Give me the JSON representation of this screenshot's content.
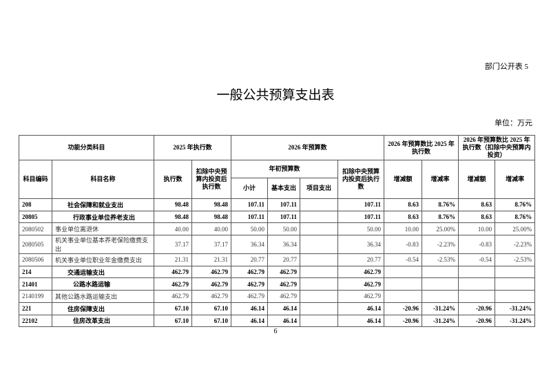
{
  "doc_tag": "部门公开表 5",
  "title": "一般公共预算支出表",
  "unit": "单位：万元",
  "page_number": "6",
  "headers": {
    "functional_category": "功能分类科目",
    "exec_2025": "2025 年执行数",
    "budget_2026": "2026 年预算数",
    "cmp_exec": "2026 年预算数比 2025 年执行数",
    "cmp_exec_excl": "2026 年预算数比 2025 年执行数（扣除中央预算内投资）",
    "code": "科目编码",
    "name": "科目名称",
    "exec": "执行数",
    "exec_excl": "扣除中央预算内投资后执行数",
    "initial_budget": "年初预算数",
    "budget_excl": "扣除中央预算内投资后执行数",
    "change_amt": "增减额",
    "change_rate": "增减率",
    "change_amt2": "增减额",
    "change_rate2": "增减率",
    "subtotal": "小计",
    "basic": "基本支出",
    "project": "项目支出"
  },
  "rows": [
    {
      "code": "208",
      "name": "社会保障和就业支出",
      "exec": "98.48",
      "exec_excl": "98.48",
      "subtotal": "107.11",
      "basic": "107.11",
      "project": "",
      "budget_excl": "107.11",
      "chg1": "8.63",
      "rate1": "8.76%",
      "chg2": "8.63",
      "rate2": "8.76%",
      "bold": true,
      "level": 1
    },
    {
      "code": "20805",
      "name": "行政事业单位养老支出",
      "exec": "98.48",
      "exec_excl": "98.48",
      "subtotal": "107.11",
      "basic": "107.11",
      "project": "",
      "budget_excl": "107.11",
      "chg1": "8.63",
      "rate1": "8.76%",
      "chg2": "8.63",
      "rate2": "8.76%",
      "bold": true,
      "level": 2
    },
    {
      "code": "2080502",
      "name": "事业单位离退休",
      "exec": "40.00",
      "exec_excl": "40.00",
      "subtotal": "50.00",
      "basic": "50.00",
      "project": "",
      "budget_excl": "50.00",
      "chg1": "10.00",
      "rate1": "25.00%",
      "chg2": "10.00",
      "rate2": "25.00%",
      "bold": false,
      "level": 0
    },
    {
      "code": "2080505",
      "name": "机关事业单位基本养老保险缴费支出",
      "exec": "37.17",
      "exec_excl": "37.17",
      "subtotal": "36.34",
      "basic": "36.34",
      "project": "",
      "budget_excl": "36.34",
      "chg1": "-0.83",
      "rate1": "-2.23%",
      "chg2": "-0.83",
      "rate2": "-2.23%",
      "bold": false,
      "level": 0
    },
    {
      "code": "2080506",
      "name": "机关事业单位职业年金缴费支出",
      "exec": "21.31",
      "exec_excl": "21.31",
      "subtotal": "20.77",
      "basic": "20.77",
      "project": "",
      "budget_excl": "20.77",
      "chg1": "-0.54",
      "rate1": "-2.53%",
      "chg2": "-0.54",
      "rate2": "-2.53%",
      "bold": false,
      "level": 0
    },
    {
      "code": "214",
      "name": "交通运输支出",
      "exec": "462.79",
      "exec_excl": "462.79",
      "subtotal": "462.79",
      "basic": "462.79",
      "project": "",
      "budget_excl": "462.79",
      "chg1": "",
      "rate1": "",
      "chg2": "",
      "rate2": "",
      "bold": true,
      "level": 1
    },
    {
      "code": "21401",
      "name": "公路水路运输",
      "exec": "462.79",
      "exec_excl": "462.79",
      "subtotal": "462.79",
      "basic": "462.79",
      "project": "",
      "budget_excl": "462.79",
      "chg1": "",
      "rate1": "",
      "chg2": "",
      "rate2": "",
      "bold": true,
      "level": 2
    },
    {
      "code": "2140199",
      "name": "其他公路水路运输支出",
      "exec": "462.79",
      "exec_excl": "462.79",
      "subtotal": "462.79",
      "basic": "462.79",
      "project": "",
      "budget_excl": "462.79",
      "chg1": "",
      "rate1": "",
      "chg2": "",
      "rate2": "",
      "bold": false,
      "level": 0
    },
    {
      "code": "221",
      "name": "住房保障支出",
      "exec": "67.10",
      "exec_excl": "67.10",
      "subtotal": "46.14",
      "basic": "46.14",
      "project": "",
      "budget_excl": "46.14",
      "chg1": "-20.96",
      "rate1": "-31.24%",
      "chg2": "-20.96",
      "rate2": "-31.24%",
      "bold": true,
      "level": 1
    },
    {
      "code": "22102",
      "name": "住房改革支出",
      "exec": "67.10",
      "exec_excl": "67.10",
      "subtotal": "46.14",
      "basic": "46.14",
      "project": "",
      "budget_excl": "46.14",
      "chg1": "-20.96",
      "rate1": "-31.24%",
      "chg2": "-20.96",
      "rate2": "-31.24%",
      "bold": true,
      "level": 2
    }
  ]
}
